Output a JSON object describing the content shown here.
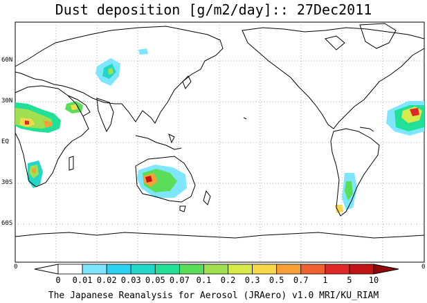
{
  "title": "Dust deposition [g/m2/day]:: 27Dec2011",
  "footer": "The Japanese Reanalysis for Aerosol (JRAero) v1.0 MRI/KU_RIAM",
  "lat_labels": [
    "60N",
    "30N",
    "EQ",
    "30S",
    "60S"
  ],
  "corner_left": "0",
  "corner_right": "0",
  "colorbar": {
    "labels": [
      "0",
      "0.01",
      "0.02",
      "0.03",
      "0.05",
      "0.07",
      "0.1",
      "0.2",
      "0.3",
      "0.5",
      "0.7",
      "1",
      "5",
      "10"
    ],
    "colors": [
      "#ffffff",
      "#ffffff",
      "#7fe6ff",
      "#2ad2f0",
      "#22d6c8",
      "#22e098",
      "#5ade5a",
      "#a0e050",
      "#d8ea4a",
      "#f6d84a",
      "#f8a038",
      "#f06030",
      "#e02828",
      "#c01414",
      "#900a0a"
    ]
  }
}
